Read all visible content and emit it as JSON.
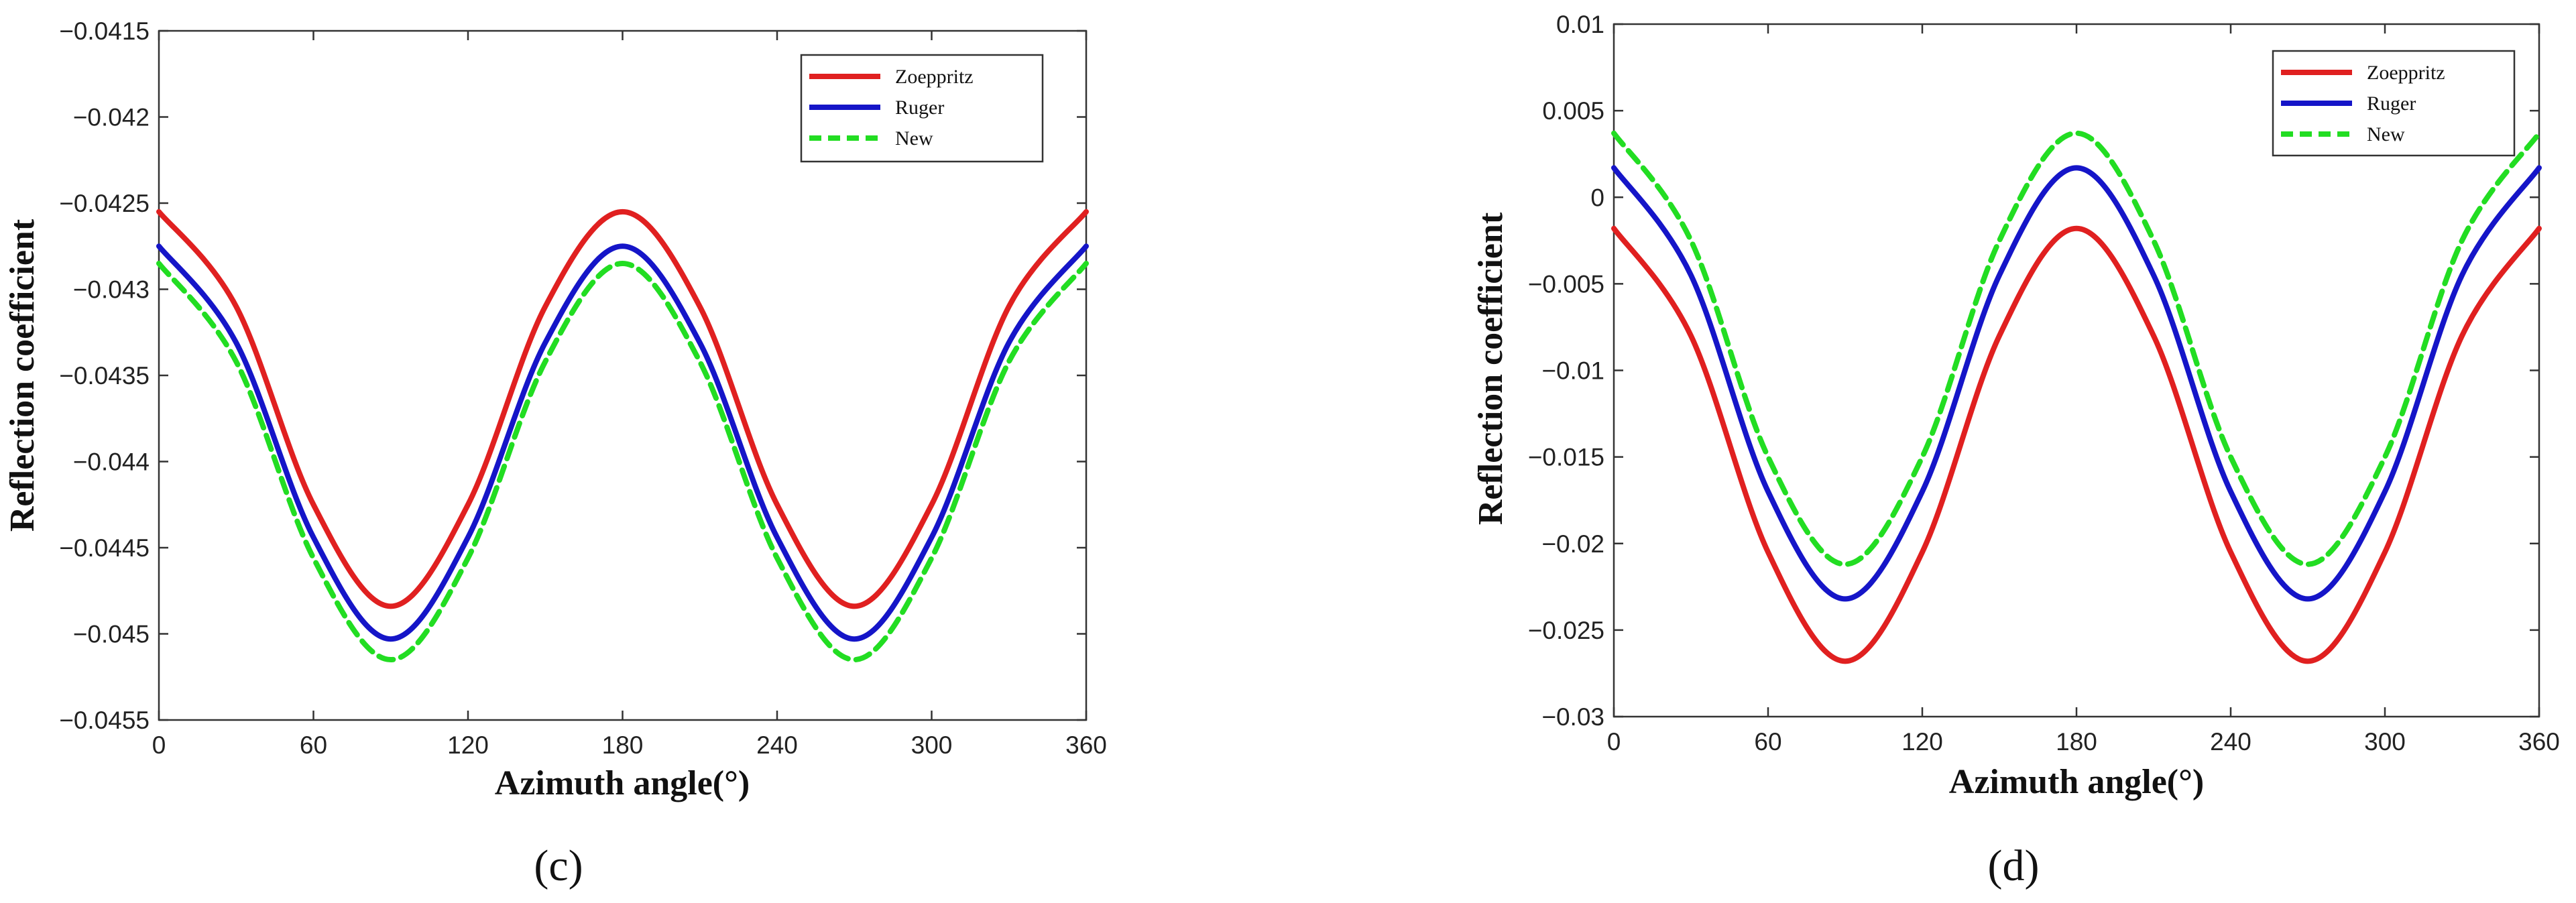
{
  "chart_data": [
    {
      "type": "line",
      "panel_label": "(c)",
      "title": "",
      "xlabel": "Azimuth angle(°)",
      "ylabel": "Reflection coefficient",
      "xlim": [
        0,
        360
      ],
      "ylim": [
        -0.0455,
        -0.0415
      ],
      "xticks": [
        0,
        60,
        120,
        180,
        240,
        300,
        360
      ],
      "xtick_labels": [
        "0",
        "60",
        "120",
        "180",
        "240",
        "300",
        "360"
      ],
      "yticks": [
        -0.0455,
        -0.045,
        -0.0445,
        -0.044,
        -0.0435,
        -0.043,
        -0.0425,
        -0.042,
        -0.0415
      ],
      "ytick_labels": [
        "-0.0455",
        "-0.045",
        "-0.0445",
        "-0.044",
        "-0.0435",
        "-0.043",
        "-0.0425",
        "-0.042",
        "-0.0415"
      ],
      "grid": false,
      "legend_position": "top-right",
      "x": [
        0,
        30,
        60,
        90,
        120,
        150,
        180,
        210,
        240,
        270,
        300,
        330,
        360
      ],
      "series": [
        {
          "name": "Zoeppritz",
          "color": "#e02020",
          "dash": "solid",
          "values": [
            -0.04255,
            -0.0431,
            -0.04425,
            -0.04484,
            -0.04425,
            -0.0431,
            -0.04255,
            -0.0431,
            -0.04425,
            -0.04484,
            -0.04425,
            -0.0431,
            -0.04255
          ]
        },
        {
          "name": "Ruger",
          "color": "#1515c8",
          "dash": "solid",
          "values": [
            -0.04275,
            -0.04331,
            -0.04444,
            -0.04503,
            -0.04444,
            -0.04331,
            -0.04275,
            -0.04331,
            -0.04444,
            -0.04503,
            -0.04444,
            -0.04331,
            -0.04275
          ]
        },
        {
          "name": "New",
          "color": "#22dd22",
          "dash": "dashed",
          "values": [
            -0.04285,
            -0.04342,
            -0.04456,
            -0.04515,
            -0.04456,
            -0.04342,
            -0.04285,
            -0.04342,
            -0.04456,
            -0.04515,
            -0.04456,
            -0.04342,
            -0.04285
          ]
        }
      ]
    },
    {
      "type": "line",
      "panel_label": "(d)",
      "title": "",
      "xlabel": "Azimuth angle(°)",
      "ylabel": "Reflection coefficient",
      "xlim": [
        0,
        360
      ],
      "ylim": [
        -0.03,
        0.01
      ],
      "xticks": [
        0,
        60,
        120,
        180,
        240,
        300,
        360
      ],
      "xtick_labels": [
        "0",
        "60",
        "120",
        "180",
        "240",
        "300",
        "360"
      ],
      "yticks": [
        -0.03,
        -0.025,
        -0.02,
        -0.015,
        -0.01,
        -0.005,
        0,
        0.005,
        0.01
      ],
      "ytick_labels": [
        "-0.03",
        "-0.025",
        "-0.02",
        "-0.015",
        "-0.01",
        "-0.005",
        "0",
        "0.005",
        "0.01"
      ],
      "grid": false,
      "legend_position": "top-right",
      "x": [
        0,
        30,
        60,
        90,
        120,
        150,
        180,
        210,
        240,
        270,
        300,
        330,
        360
      ],
      "series": [
        {
          "name": "Zoeppritz",
          "color": "#e02020",
          "dash": "solid",
          "values": [
            -0.0018,
            -0.008,
            -0.0205,
            -0.0268,
            -0.0205,
            -0.008,
            -0.0018,
            -0.008,
            -0.0205,
            -0.0268,
            -0.0205,
            -0.008,
            -0.0018
          ]
        },
        {
          "name": "Ruger",
          "color": "#1515c8",
          "dash": "solid",
          "values": [
            0.0017,
            -0.0045,
            -0.017,
            -0.0232,
            -0.017,
            -0.0045,
            0.0017,
            -0.0045,
            -0.017,
            -0.0232,
            -0.017,
            -0.0045,
            0.0017
          ]
        },
        {
          "name": "New",
          "color": "#22dd22",
          "dash": "dashed",
          "values": [
            0.0037,
            -0.0025,
            -0.015,
            -0.0212,
            -0.015,
            -0.0025,
            0.0037,
            -0.0025,
            -0.015,
            -0.0212,
            -0.015,
            -0.0025,
            0.0037
          ]
        }
      ]
    }
  ]
}
